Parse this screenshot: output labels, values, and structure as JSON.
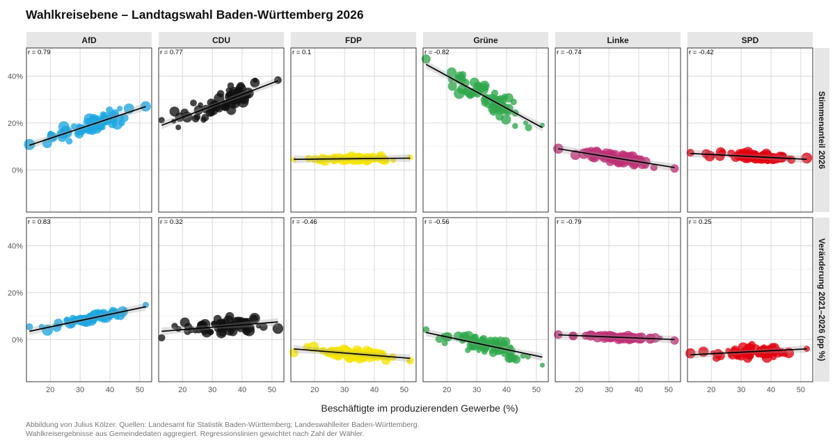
{
  "title": "Wahlkreisebene – Landtagswahl Baden-Württemberg 2026",
  "caption": {
    "line1": "Abbildung von Julius Kölzer. Quellen: Landesamt für Statistik Baden-Württemberg; Landeswahlleiter Baden-Württemberg.",
    "line2": "Wahlkreisergebnisse aus Gemeindedaten aggregiert. Regressionslinien gewichtet nach Zahl der Wähler."
  },
  "chart_data": {
    "type": "scatter",
    "xlabel": "Beschäftigte im produzierenden Gewerbe (%)",
    "xlim": [
      12,
      54
    ],
    "xticks": [
      20,
      30,
      40,
      50
    ],
    "ylim": [
      -18,
      52
    ],
    "yticks": [
      0,
      20,
      40
    ],
    "ytick_labels": [
      "0%",
      "20%",
      "40%"
    ],
    "parties": [
      {
        "name": "AfD",
        "color": "#1ba7e3"
      },
      {
        "name": "CDU",
        "color": "#111111"
      },
      {
        "name": "FDP",
        "color": "#f5e400"
      },
      {
        "name": "Grüne",
        "color": "#2da84a"
      },
      {
        "name": "Linke",
        "color": "#be3075"
      },
      {
        "name": "SPD",
        "color": "#e3000f"
      }
    ],
    "rows": [
      {
        "label": "Stimmenanteil 2026",
        "panels": [
          {
            "party": "AfD",
            "r": "r = 0.79",
            "fit": {
              "x": [
                13,
                52
              ],
              "y": [
                10.5,
                27
              ]
            },
            "y_at20": 14,
            "spread": 2.5
          },
          {
            "party": "CDU",
            "r": "r = 0.77",
            "fit": {
              "x": [
                13,
                52
              ],
              "y": [
                19,
                38
              ]
            },
            "y_at20": 22.5,
            "spread": 3.5
          },
          {
            "party": "FDP",
            "r": "r = 0.1",
            "fit": {
              "x": [
                13,
                52
              ],
              "y": [
                4.5,
                5
              ]
            },
            "y_at20": 4.6,
            "spread": 0.8
          },
          {
            "party": "Grüne",
            "r": "r = -0.82",
            "fit": {
              "x": [
                13,
                52
              ],
              "y": [
                45,
                18
              ]
            },
            "y_at20": 40,
            "spread": 3.5
          },
          {
            "party": "Linke",
            "r": "r = -0.74",
            "fit": {
              "x": [
                13,
                52
              ],
              "y": [
                9,
                1
              ]
            },
            "y_at20": 7.5,
            "spread": 1.3
          },
          {
            "party": "SPD",
            "r": "r = -0.42",
            "fit": {
              "x": [
                13,
                52
              ],
              "y": [
                7,
                4.5
              ]
            },
            "y_at20": 6.6,
            "spread": 1.0
          }
        ]
      },
      {
        "label": "Veränderung 2021–2026 (pp %)",
        "panels": [
          {
            "party": "AfD",
            "r": "r = 0.83",
            "fit": {
              "x": [
                13,
                52
              ],
              "y": [
                3.5,
                14
              ]
            },
            "y_at20": 5.5,
            "spread": 1.3
          },
          {
            "party": "CDU",
            "r": "r = 0.32",
            "fit": {
              "x": [
                13,
                52
              ],
              "y": [
                3.5,
                7.5
              ]
            },
            "y_at20": 4.2,
            "spread": 2.2
          },
          {
            "party": "FDP",
            "r": "r = -0.46",
            "fit": {
              "x": [
                13,
                52
              ],
              "y": [
                -4,
                -8
              ]
            },
            "y_at20": -4.8,
            "spread": 1.3
          },
          {
            "party": "Grüne",
            "r": "r = -0.56",
            "fit": {
              "x": [
                13,
                52
              ],
              "y": [
                3,
                -7.5
              ]
            },
            "y_at20": 1.1,
            "spread": 2.5
          },
          {
            "party": "Linke",
            "r": "r = -0.79",
            "fit": {
              "x": [
                13,
                52
              ],
              "y": [
                2,
                0
              ]
            },
            "y_at20": 1.6,
            "spread": 0.5
          },
          {
            "party": "SPD",
            "r": "r = 0.25",
            "fit": {
              "x": [
                13,
                52
              ],
              "y": [
                -6.5,
                -4
              ]
            },
            "y_at20": -6.0,
            "spread": 1.8
          }
        ]
      }
    ]
  }
}
